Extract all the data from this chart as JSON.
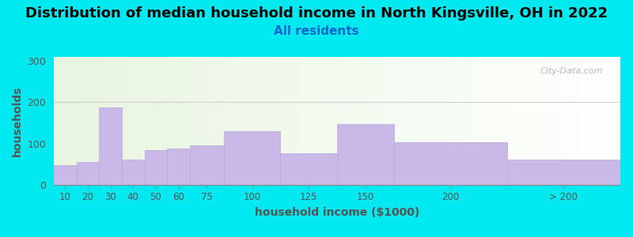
{
  "title": "Distribution of median household income in North Kingsville, OH in 2022",
  "subtitle": "All residents",
  "xlabel": "household income ($1000)",
  "ylabel": "households",
  "categories": [
    "10",
    "20",
    "30",
    "40",
    "50",
    "60",
    "75",
    "100",
    "125",
    "150",
    "200",
    "> 200"
  ],
  "values": [
    47,
    55,
    188,
    62,
    85,
    88,
    95,
    130,
    77,
    148,
    103,
    62
  ],
  "bar_lefts": [
    0,
    10,
    20,
    30,
    40,
    50,
    60,
    75,
    100,
    125,
    150,
    200
  ],
  "bar_widths": [
    10,
    10,
    10,
    10,
    10,
    10,
    15,
    25,
    25,
    25,
    50,
    50
  ],
  "bar_color": "#c9b8e8",
  "bar_edgecolor": "#b8a8d8",
  "ylim": [
    0,
    310
  ],
  "yticks": [
    0,
    100,
    200,
    300
  ],
  "xlim": [
    0,
    250
  ],
  "bg_color_left": "#f0fae8",
  "bg_color_right": "#ffffff",
  "outer_background": "#00e8f0",
  "title_fontsize": 13,
  "subtitle_fontsize": 11,
  "subtitle_color": "#0066cc",
  "axis_label_fontsize": 10,
  "watermark": "City-Data.com"
}
